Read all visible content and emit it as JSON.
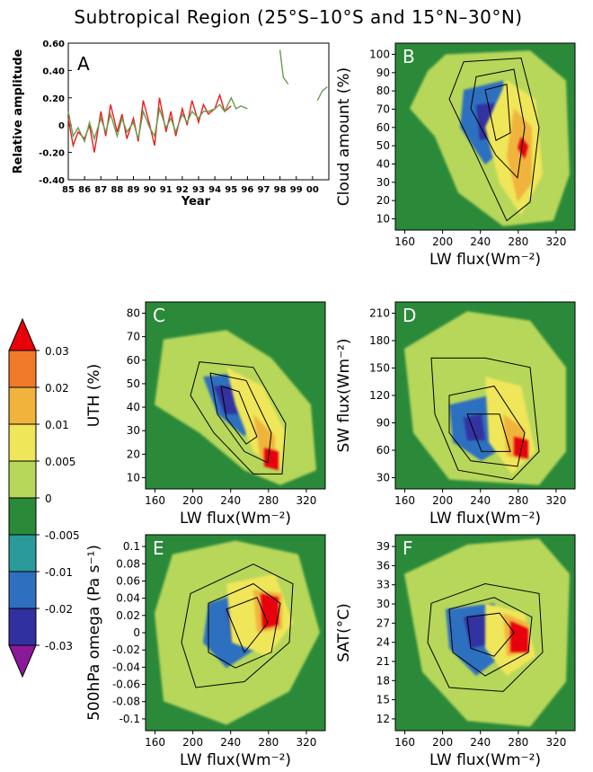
{
  "title": "Subtropical Region (25°S–10°S and 15°N–30°N)",
  "panels": {
    "A": {
      "label": "A",
      "ylabel": "Relative amplitude",
      "xlabel": "Year",
      "yticks": [
        "0.60",
        "0.40",
        "0.20",
        "0",
        "-0.20",
        "-0.40"
      ],
      "xticks": [
        "85",
        "86",
        "87",
        "88",
        "89",
        "90",
        "91",
        "92",
        "93",
        "94",
        "95",
        "96",
        "97",
        "98",
        "99",
        "00"
      ]
    },
    "B": {
      "label": "B",
      "ylabel": "Cloud amount (%)",
      "xlabel": "LW flux(Wm⁻²)",
      "yticks": [
        "100",
        "90",
        "80",
        "70",
        "60",
        "50",
        "40",
        "30",
        "20",
        "10"
      ],
      "xticks": [
        "160",
        "200",
        "240",
        "280",
        "320"
      ]
    },
    "C": {
      "label": "C",
      "ylabel": "UTH (%)",
      "xlabel": "LW flux(Wm⁻²)",
      "yticks": [
        "80",
        "70",
        "60",
        "50",
        "40",
        "30",
        "20",
        "10"
      ],
      "xticks": [
        "160",
        "200",
        "240",
        "280",
        "320"
      ]
    },
    "D": {
      "label": "D",
      "ylabel": "SW flux(Wm⁻²)",
      "xlabel": "LW flux(Wm⁻²)",
      "yticks": [
        "210",
        "180",
        "150",
        "120",
        "90",
        "60",
        "30"
      ],
      "xticks": [
        "160",
        "200",
        "240",
        "280",
        "320"
      ]
    },
    "E": {
      "label": "E",
      "ylabel": "500hPa omega (Pa s⁻¹)",
      "xlabel": "LW flux(Wm⁻²)",
      "yticks": [
        "0.1",
        "0.08",
        "0.06",
        "0.04",
        "0.02",
        "0",
        "-0.02",
        "-0.04",
        "-0.06",
        "-0.08",
        "-0.1"
      ],
      "xticks": [
        "160",
        "200",
        "240",
        "280",
        "320"
      ]
    },
    "F": {
      "label": "F",
      "ylabel": "SAT(°C)",
      "xlabel": "LW flux(Wm⁻²)",
      "yticks": [
        "39",
        "36",
        "33",
        "30",
        "27",
        "24",
        "21",
        "18",
        "15",
        "12"
      ],
      "xticks": [
        "160",
        "200",
        "240",
        "280",
        "320"
      ]
    }
  },
  "colorbar": {
    "labels": [
      "0.03",
      "0.02",
      "0.01",
      "0.005",
      "0",
      "-0.005",
      "-0.01",
      "-0.02",
      "-0.03"
    ],
    "colors": [
      "#e8000b",
      "#f07a2a",
      "#f0b43c",
      "#f0e65a",
      "#b7d75a",
      "#2a8a3a",
      "#2a9a9a",
      "#2e6fc0",
      "#3030a0",
      "#8a1a9a"
    ]
  },
  "chart_data": [
    {
      "type": "line",
      "panel": "A",
      "xlabel": "Year",
      "ylabel": "Relative amplitude",
      "ylim": [
        -0.4,
        0.6
      ],
      "xlim": [
        1985,
        2001
      ],
      "series": [
        {
          "color": "#e8201a",
          "x": [
            1985.0,
            1985.3,
            1985.6,
            1986.0,
            1986.3,
            1986.6,
            1987.0,
            1987.3,
            1987.6,
            1988.0,
            1988.3,
            1988.6,
            1989.0,
            1989.3,
            1989.6,
            1990.0,
            1990.3,
            1990.6,
            1991.0,
            1991.3,
            1991.6,
            1992.0,
            1992.3,
            1992.6,
            1993.0,
            1993.3,
            1993.6,
            1994.0,
            1994.3,
            1994.6,
            1995.0
          ],
          "y": [
            0.05,
            -0.15,
            -0.05,
            -0.1,
            0.0,
            -0.2,
            0.1,
            -0.08,
            0.15,
            -0.05,
            0.08,
            -0.1,
            0.05,
            -0.12,
            0.18,
            0.0,
            -0.15,
            0.2,
            -0.05,
            0.1,
            -0.08,
            0.12,
            0.0,
            0.18,
            0.02,
            0.15,
            0.08,
            0.12,
            0.22,
            0.1,
            0.14
          ]
        },
        {
          "color": "#6a9a50",
          "x": [
            1985.0,
            1985.3,
            1985.6,
            1986.0,
            1986.3,
            1986.6,
            1987.0,
            1987.3,
            1987.6,
            1988.0,
            1988.3,
            1988.6,
            1989.0,
            1989.3,
            1989.6,
            1990.0,
            1990.3,
            1990.6,
            1991.0,
            1991.3,
            1991.6,
            1992.0,
            1992.3,
            1992.6,
            1993.0,
            1993.3,
            1993.6,
            1994.0,
            1994.3,
            1994.6,
            1995.0,
            1995.3,
            1995.6,
            1996.0
          ],
          "y": [
            0.1,
            -0.08,
            -0.02,
            -0.12,
            0.02,
            -0.1,
            0.05,
            -0.05,
            0.08,
            -0.08,
            0.05,
            -0.05,
            0.02,
            -0.1,
            0.1,
            -0.02,
            -0.08,
            0.12,
            -0.02,
            0.05,
            -0.05,
            0.08,
            0.02,
            0.1,
            0.05,
            0.1,
            0.1,
            0.12,
            0.15,
            0.1,
            0.2,
            0.12,
            0.14,
            0.12
          ]
        },
        {
          "color": "#6a9a50",
          "x": [
            1998.0,
            1998.2,
            1998.5
          ],
          "y": [
            0.55,
            0.35,
            0.3
          ]
        },
        {
          "color": "#6a9a50",
          "x": [
            2000.3,
            2000.6,
            2000.9
          ],
          "y": [
            0.18,
            0.25,
            0.28
          ]
        }
      ]
    },
    {
      "type": "heatmap",
      "panel": "B",
      "xlabel": "LW flux(Wm⁻²)",
      "ylabel": "Cloud amount (%)",
      "xlim": [
        150,
        340
      ],
      "ylim": [
        0,
        105
      ]
    },
    {
      "type": "heatmap",
      "panel": "C",
      "xlabel": "LW flux(Wm⁻²)",
      "ylabel": "UTH (%)",
      "xlim": [
        150,
        340
      ],
      "ylim": [
        0,
        88
      ]
    },
    {
      "type": "heatmap",
      "panel": "D",
      "xlabel": "LW flux(Wm⁻²)",
      "ylabel": "SW flux(Wm⁻²)",
      "xlim": [
        150,
        340
      ],
      "ylim": [
        25,
        213
      ]
    },
    {
      "type": "heatmap",
      "panel": "E",
      "xlabel": "LW flux(Wm⁻²)",
      "ylabel": "500hPa omega (Pa s⁻¹)",
      "xlim": [
        150,
        340
      ],
      "ylim": [
        -0.12,
        0.12
      ]
    },
    {
      "type": "heatmap",
      "panel": "F",
      "xlabel": "LW flux(Wm⁻²)",
      "ylabel": "SAT(°C)",
      "xlim": [
        150,
        340
      ],
      "ylim": [
        10,
        41
      ]
    }
  ]
}
